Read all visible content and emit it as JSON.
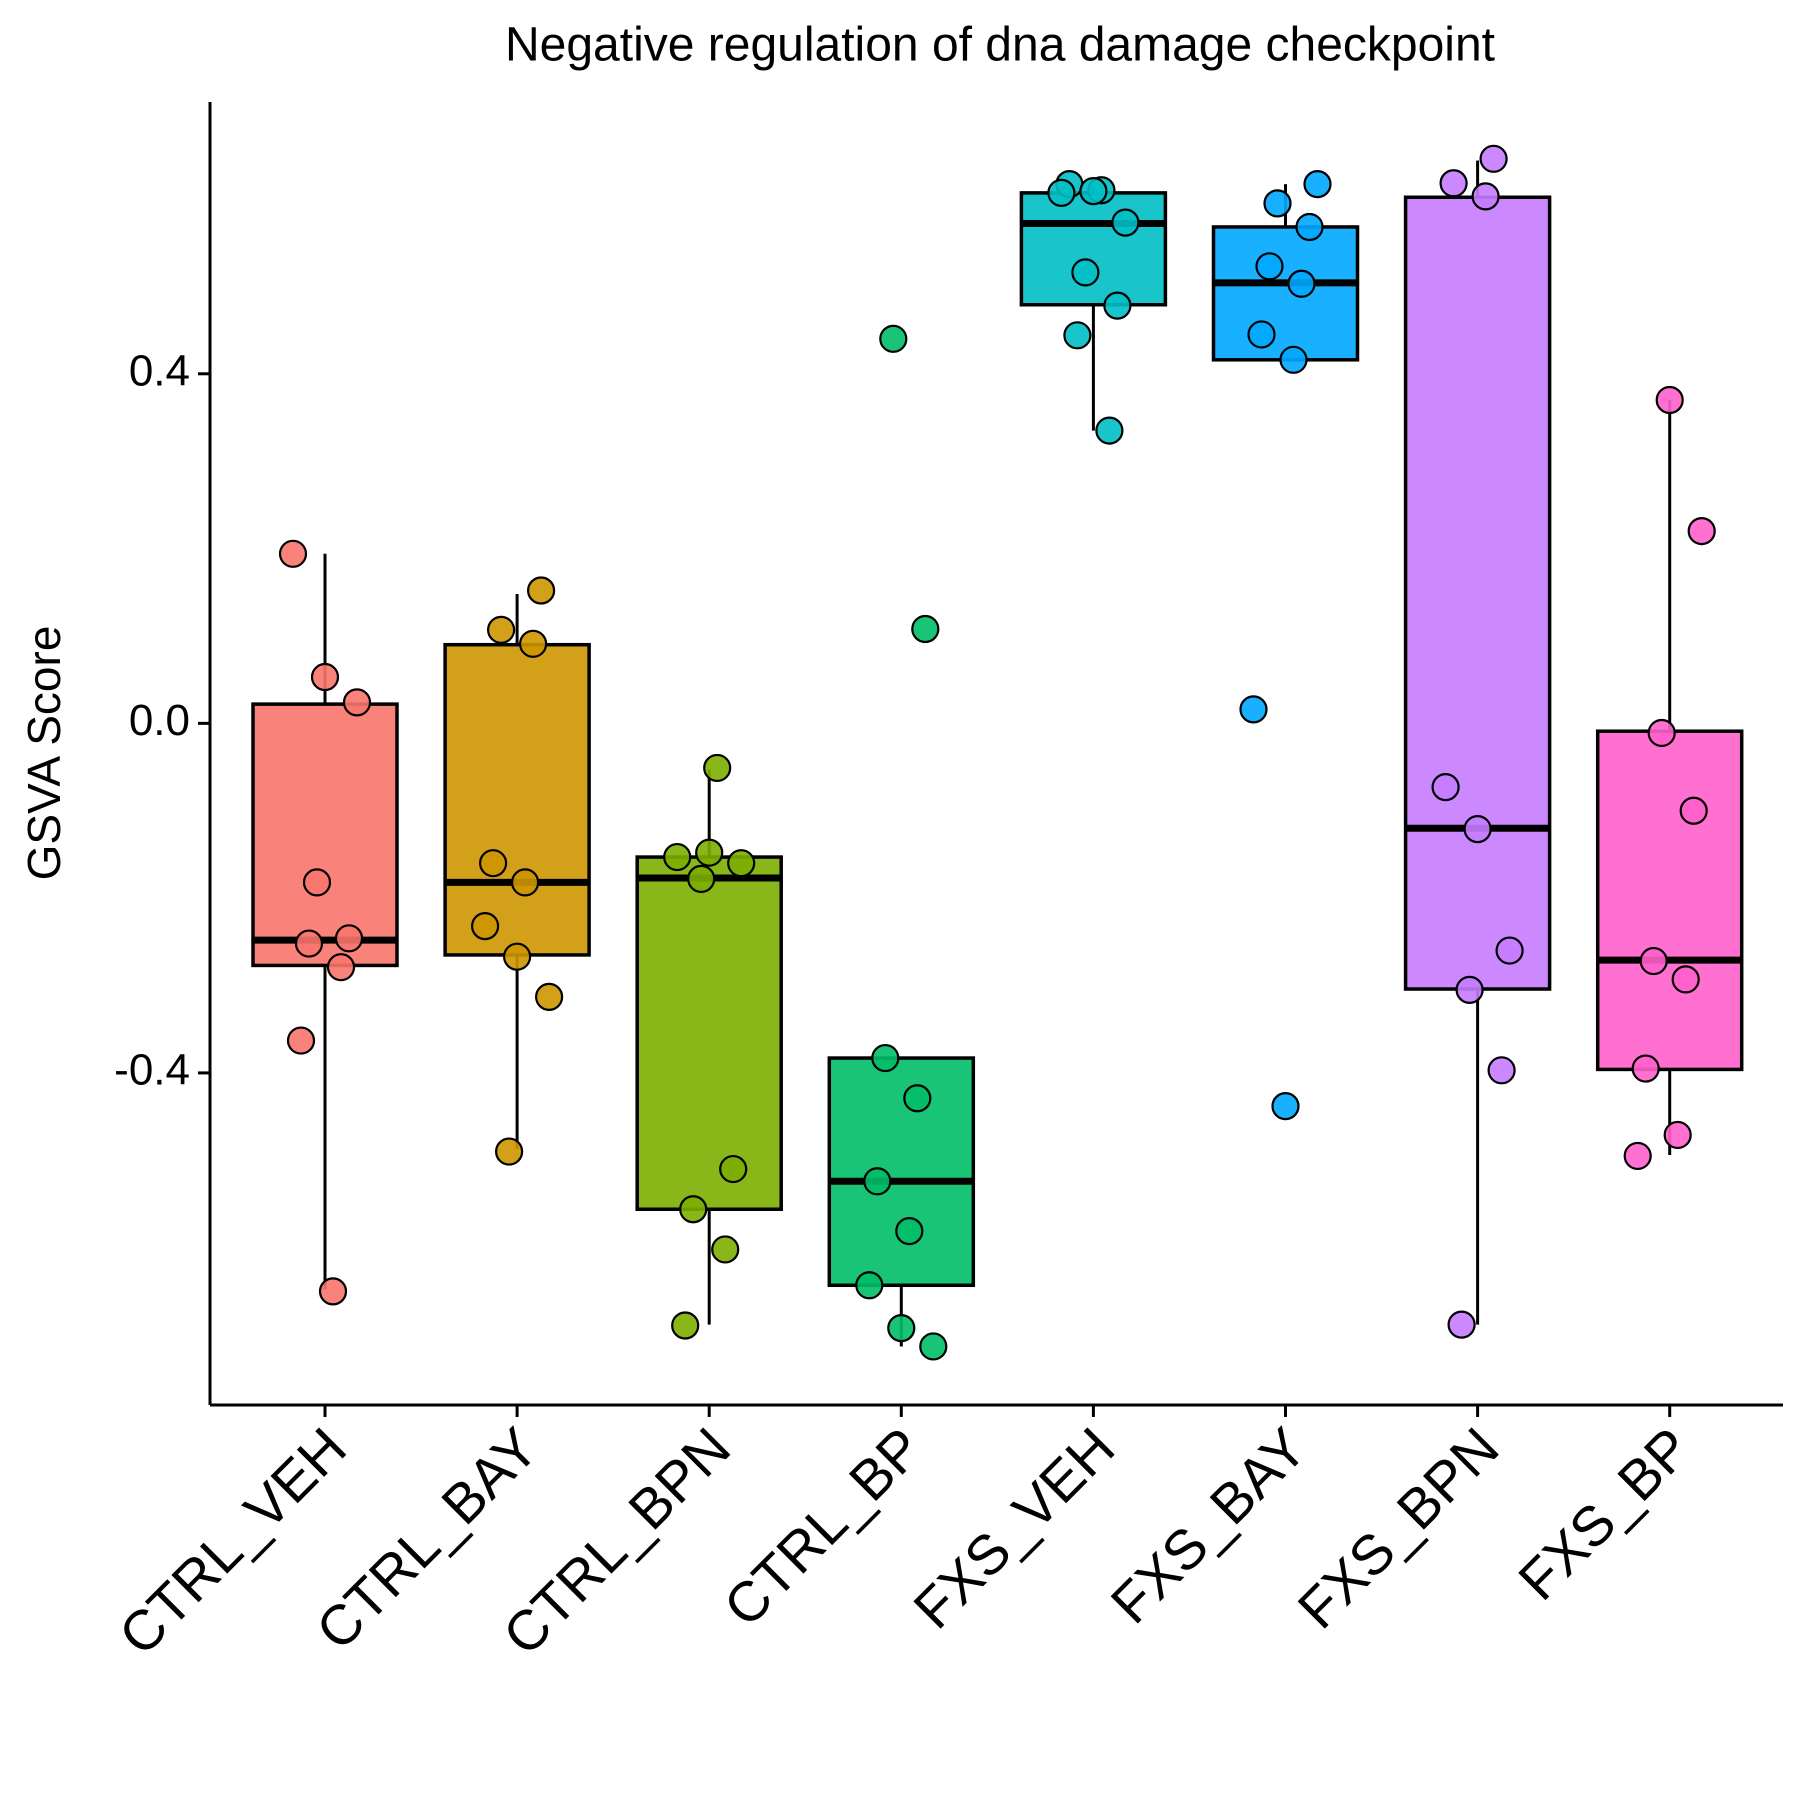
{
  "chart_data": {
    "type": "box",
    "title": "Negative regulation of dna damage checkpoint",
    "y_label": "GSVA Score",
    "categories": [
      "CTRL_VEH",
      "CTRL_BAY",
      "CTRL_BPN",
      "CTRL_BP",
      "FXS_VEH",
      "FXS_BAY",
      "FXS_BPN",
      "FXS_BP"
    ],
    "colors": [
      "#F8766D",
      "#CD9600",
      "#7CAE00",
      "#00BE67",
      "#00BFC4",
      "#00A9FF",
      "#C77CFF",
      "#FF61CC"
    ],
    "boxes": [
      {
        "min": -0.648,
        "q1": -0.277,
        "median": -0.248,
        "q3": 0.022,
        "max": 0.194
      },
      {
        "min": -0.487,
        "q1": -0.265,
        "median": -0.182,
        "q3": 0.09,
        "max": 0.148
      },
      {
        "min": -0.688,
        "q1": -0.556,
        "median": -0.177,
        "q3": -0.153,
        "max": -0.053
      },
      {
        "min": -0.713,
        "q1": -0.643,
        "median": -0.524,
        "q3": -0.383,
        "max": -0.383
      },
      {
        "min": 0.335,
        "q1": 0.479,
        "median": 0.572,
        "q3": 0.607,
        "max": 0.617
      },
      {
        "min": 0.416,
        "q1": 0.416,
        "median": 0.504,
        "q3": 0.568,
        "max": 0.617
      },
      {
        "min": -0.688,
        "q1": -0.304,
        "median": -0.12,
        "q3": 0.602,
        "max": 0.644
      },
      {
        "min": -0.494,
        "q1": -0.396,
        "median": -0.271,
        "q3": -0.009,
        "max": 0.37
      }
    ],
    "points": [
      [
        0.194,
        0.053,
        0.024,
        -0.182,
        -0.246,
        -0.252,
        -0.279,
        -0.363,
        -0.65
      ],
      [
        0.152,
        0.107,
        0.091,
        -0.16,
        -0.182,
        -0.232,
        -0.267,
        -0.313,
        -0.49
      ],
      [
        -0.051,
        -0.153,
        -0.148,
        -0.16,
        -0.178,
        -0.51,
        -0.556,
        -0.602,
        -0.689
      ],
      [
        0.44,
        0.108,
        -0.383,
        -0.429,
        -0.524,
        -0.581,
        -0.643,
        -0.692,
        -0.713
      ],
      [
        0.617,
        0.61,
        0.607,
        0.609,
        0.573,
        0.516,
        0.478,
        0.444,
        0.335
      ],
      [
        0.617,
        0.595,
        0.568,
        0.523,
        0.503,
        0.445,
        0.416,
        0.016,
        -0.438
      ],
      [
        0.646,
        0.618,
        0.603,
        -0.073,
        -0.121,
        -0.26,
        -0.305,
        -0.397,
        -0.688
      ],
      [
        0.37,
        0.22,
        -0.011,
        -0.1,
        -0.272,
        -0.293,
        -0.395,
        -0.471,
        -0.495
      ]
    ],
    "ylim": [
      -0.78,
      0.711
    ],
    "yticks": [
      -0.4,
      {
        "value": 0,
        "label": "0.0"
      },
      0.4
    ]
  }
}
